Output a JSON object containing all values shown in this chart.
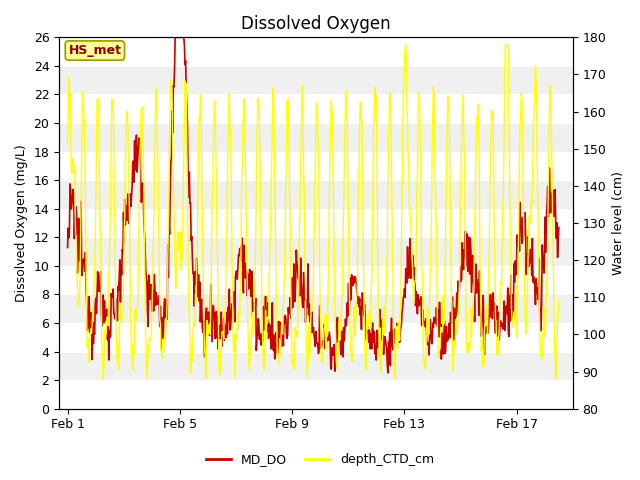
{
  "title": "Dissolved Oxygen",
  "ylabel_left": "Dissolved Oxygen (mg/L)",
  "ylabel_right": "Water level (cm)",
  "annotation_text": "HS_met",
  "ylim_left": [
    0,
    26
  ],
  "ylim_right": [
    80,
    180
  ],
  "yticks_left": [
    0,
    2,
    4,
    6,
    8,
    10,
    12,
    14,
    16,
    18,
    20,
    22,
    24,
    26
  ],
  "yticks_right": [
    80,
    90,
    100,
    110,
    120,
    130,
    140,
    150,
    160,
    170,
    180
  ],
  "xtick_positions": [
    0,
    4,
    8,
    12,
    16
  ],
  "xtick_labels": [
    "Feb 1",
    "Feb 5",
    "Feb 9",
    "Feb 13",
    "Feb 17"
  ],
  "xlim": [
    -0.3,
    18.0
  ],
  "background_color": "#ffffff",
  "plot_bg_color": "#f0f0f0",
  "line_color_do": "#cc0000",
  "line_color_depth": "#ffff00",
  "legend_do": "MD_DO",
  "legend_depth": "depth_CTD_cm",
  "grid_color": "#ffffff",
  "title_fontsize": 12,
  "axis_label_fontsize": 9,
  "tick_fontsize": 9,
  "annotation_color": "#8b0000",
  "annotation_bg": "#ffff99",
  "annotation_edge": "#999900"
}
